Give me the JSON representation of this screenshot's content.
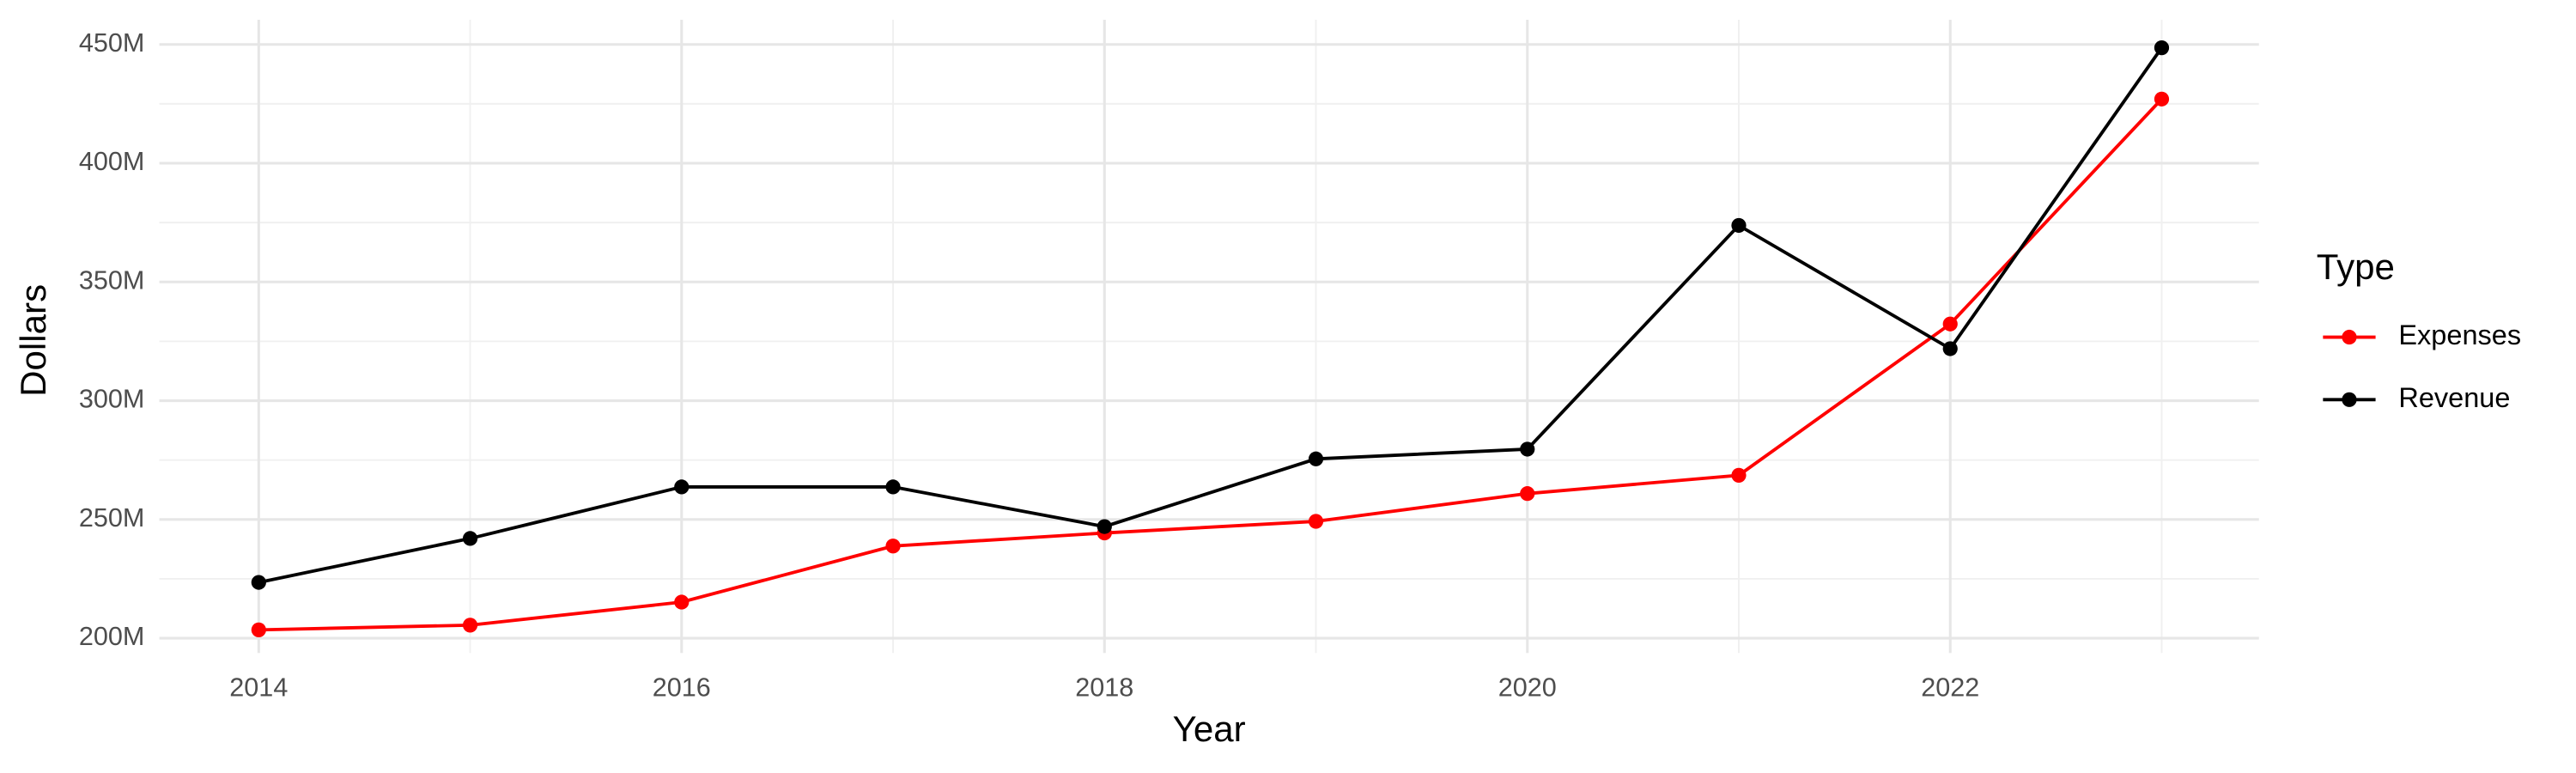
{
  "chart_data": {
    "type": "line",
    "x_label": "Year",
    "y_label": "Dollars",
    "legend_title": "Type",
    "legend_position": "right",
    "x": [
      2014,
      2015,
      2016,
      2017,
      2018,
      2019,
      2020,
      2021,
      2022,
      2023
    ],
    "series": [
      {
        "name": "Expenses",
        "color": "#ff0000",
        "values": [
          203500000,
          205500000,
          215200000,
          238800000,
          244300000,
          249200000,
          260900000,
          268600000,
          332300000,
          427000000
        ]
      },
      {
        "name": "Revenue",
        "color": "#000000",
        "values": [
          223500000,
          242000000,
          263700000,
          263700000,
          247000000,
          275500000,
          279600000,
          373800000,
          321900000,
          448600000
        ]
      }
    ],
    "xlim": [
      2013.53,
      2023.46
    ],
    "xticks": [
      2014,
      2016,
      2018,
      2020,
      2022
    ],
    "ylim": [
      193800000,
      460400000
    ],
    "yticks": [
      {
        "value": 200000000,
        "label": "200M"
      },
      {
        "value": 250000000,
        "label": "250M"
      },
      {
        "value": 300000000,
        "label": "300M"
      },
      {
        "value": 350000000,
        "label": "350M"
      },
      {
        "value": 400000000,
        "label": "400M"
      },
      {
        "value": 450000000,
        "label": "450M"
      }
    ],
    "grid": true
  }
}
